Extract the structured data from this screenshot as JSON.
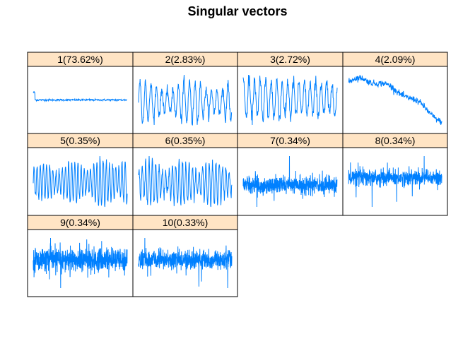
{
  "title": "Singular vectors",
  "colors": {
    "strip_background": "#ffe4c4",
    "line": "#0080ff",
    "frame": "#000000"
  },
  "chart_data": {
    "type": "line",
    "title": "Singular vectors",
    "layout": "lattice 4 columns x 3 rows, 10 panels",
    "axes": "none shown",
    "panels": [
      {
        "label": "1(73.62%)",
        "shape": "nearly constant flat line"
      },
      {
        "label": "2(2.83%)",
        "shape": "regular oscillation, ~17 cycles"
      },
      {
        "label": "3(2.72%)",
        "shape": "regular oscillation, ~17 cycles"
      },
      {
        "label": "4(2.09%)",
        "shape": "slowly declining trend"
      },
      {
        "label": "5(0.35%)",
        "shape": "oscillation with varying amplitude"
      },
      {
        "label": "6(0.35%)",
        "shape": "oscillation with varying amplitude"
      },
      {
        "label": "7(0.34%)",
        "shape": "dense noise"
      },
      {
        "label": "8(0.34%)",
        "shape": "dense noise"
      },
      {
        "label": "9(0.34%)",
        "shape": "dense noise"
      },
      {
        "label": "10(0.33%)",
        "shape": "dense noise"
      }
    ]
  }
}
